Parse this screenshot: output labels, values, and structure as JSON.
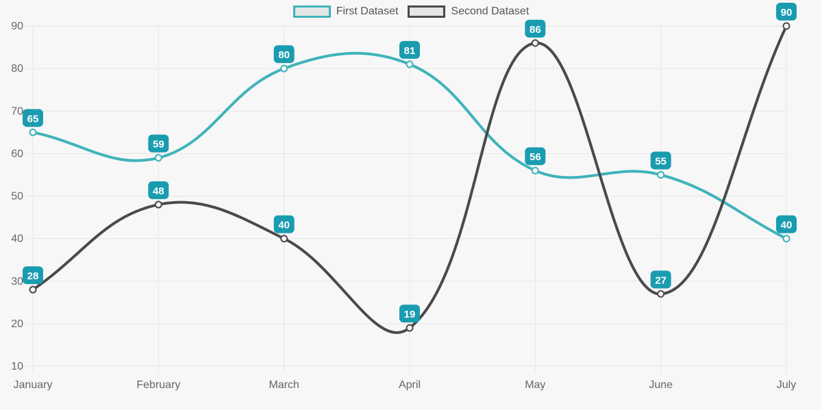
{
  "chart_data": {
    "type": "line",
    "title": "",
    "categories": [
      "January",
      "February",
      "March",
      "April",
      "May",
      "June",
      "July"
    ],
    "series": [
      {
        "name": "First Dataset",
        "values": [
          65,
          59,
          80,
          81,
          56,
          55,
          40
        ],
        "color": "#3fb3ba"
      },
      {
        "name": "Second Dataset",
        "values": [
          28,
          48,
          40,
          19,
          86,
          27,
          90
        ],
        "color": "#4a4a4a"
      }
    ],
    "xlabel": "",
    "ylabel": "",
    "ylim": [
      10,
      90
    ],
    "yticks": [
      10,
      20,
      30,
      40,
      50,
      60,
      70,
      80,
      90
    ],
    "grid": true,
    "legend_position": "top",
    "curve": "bezier-tension-0.4",
    "colors": {
      "background": "#f7f7f7",
      "grid": "#e5e5e5",
      "tick_text": "#666666",
      "badge": "#1a9cb0",
      "badge_text": "#ffffff",
      "legend_swatch_fill": "#e6e6e6"
    }
  },
  "legend": {
    "items": [
      {
        "label": "First Dataset"
      },
      {
        "label": "Second Dataset"
      }
    ]
  }
}
